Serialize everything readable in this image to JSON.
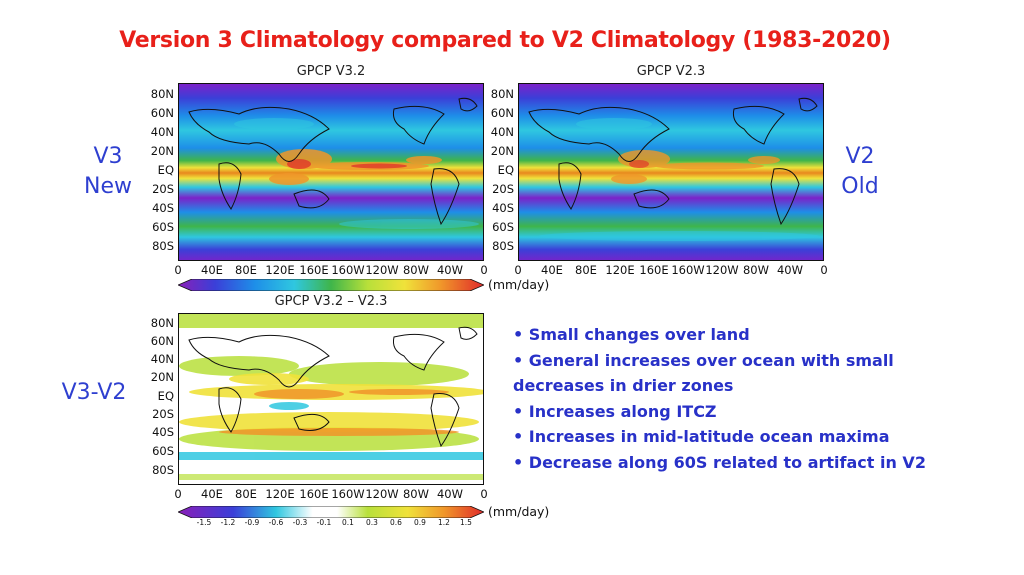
{
  "title": "Version 3 Climatology compared to V2 Climatology (1983-2020)",
  "labels": {
    "v3_line1": "V3",
    "v3_line2": "New",
    "v2_line1": "V2",
    "v2_line2": "Old",
    "diff": "V3-V2"
  },
  "panels": {
    "v3_title": "GPCP V3.2",
    "v2_title": "GPCP V2.3",
    "diff_title": "GPCP V3.2 – V2.3"
  },
  "lat_ticks": [
    "80N",
    "60N",
    "40N",
    "20N",
    "EQ",
    "20S",
    "40S",
    "60S",
    "80S"
  ],
  "lon_ticks": [
    "0",
    "40E",
    "80E",
    "120E",
    "160E",
    "160W",
    "120W",
    "80W",
    "40W",
    "0"
  ],
  "unit": "(mm/day)",
  "diff_colorbar_ticks": [
    "-1.5",
    "-1.2",
    "-0.9",
    "-0.6",
    "-0.3",
    "-0.1",
    "0.1",
    "0.3",
    "0.6",
    "0.9",
    "1.2",
    "1.5"
  ],
  "colors": {
    "title": "#e8201a",
    "text_blue": "#2e3fd0",
    "bullet_blue": "#2831c8"
  },
  "bullets": [
    "• Small changes over land",
    "• General increases over ocean with small decreases in drier zones",
    "• Increases along ITCZ",
    "• Increases in mid-latitude ocean maxima",
    "• Decrease along 60S related to artifact in V2"
  ]
}
